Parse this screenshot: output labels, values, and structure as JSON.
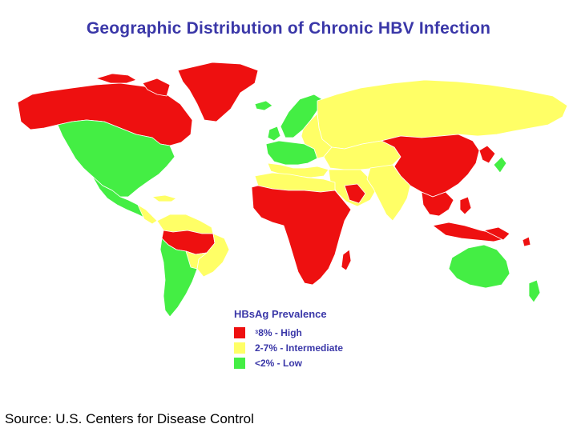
{
  "title": "Geographic Distribution of Chronic HBV Infection",
  "legend": {
    "title": "HBsAg Prevalence",
    "items": [
      {
        "label": "ᵌ8% - High",
        "color": "#ee1010"
      },
      {
        "label": "2-7% - Intermediate",
        "color": "#ffff66"
      },
      {
        "label": "<2% - Low",
        "color": "#44ee44"
      }
    ]
  },
  "source": "Source: U.S. Centers for Disease Control",
  "colors": {
    "high": "#ee1010",
    "intermediate": "#ffff66",
    "low": "#44ee44",
    "title_text": "#3a37a8"
  }
}
